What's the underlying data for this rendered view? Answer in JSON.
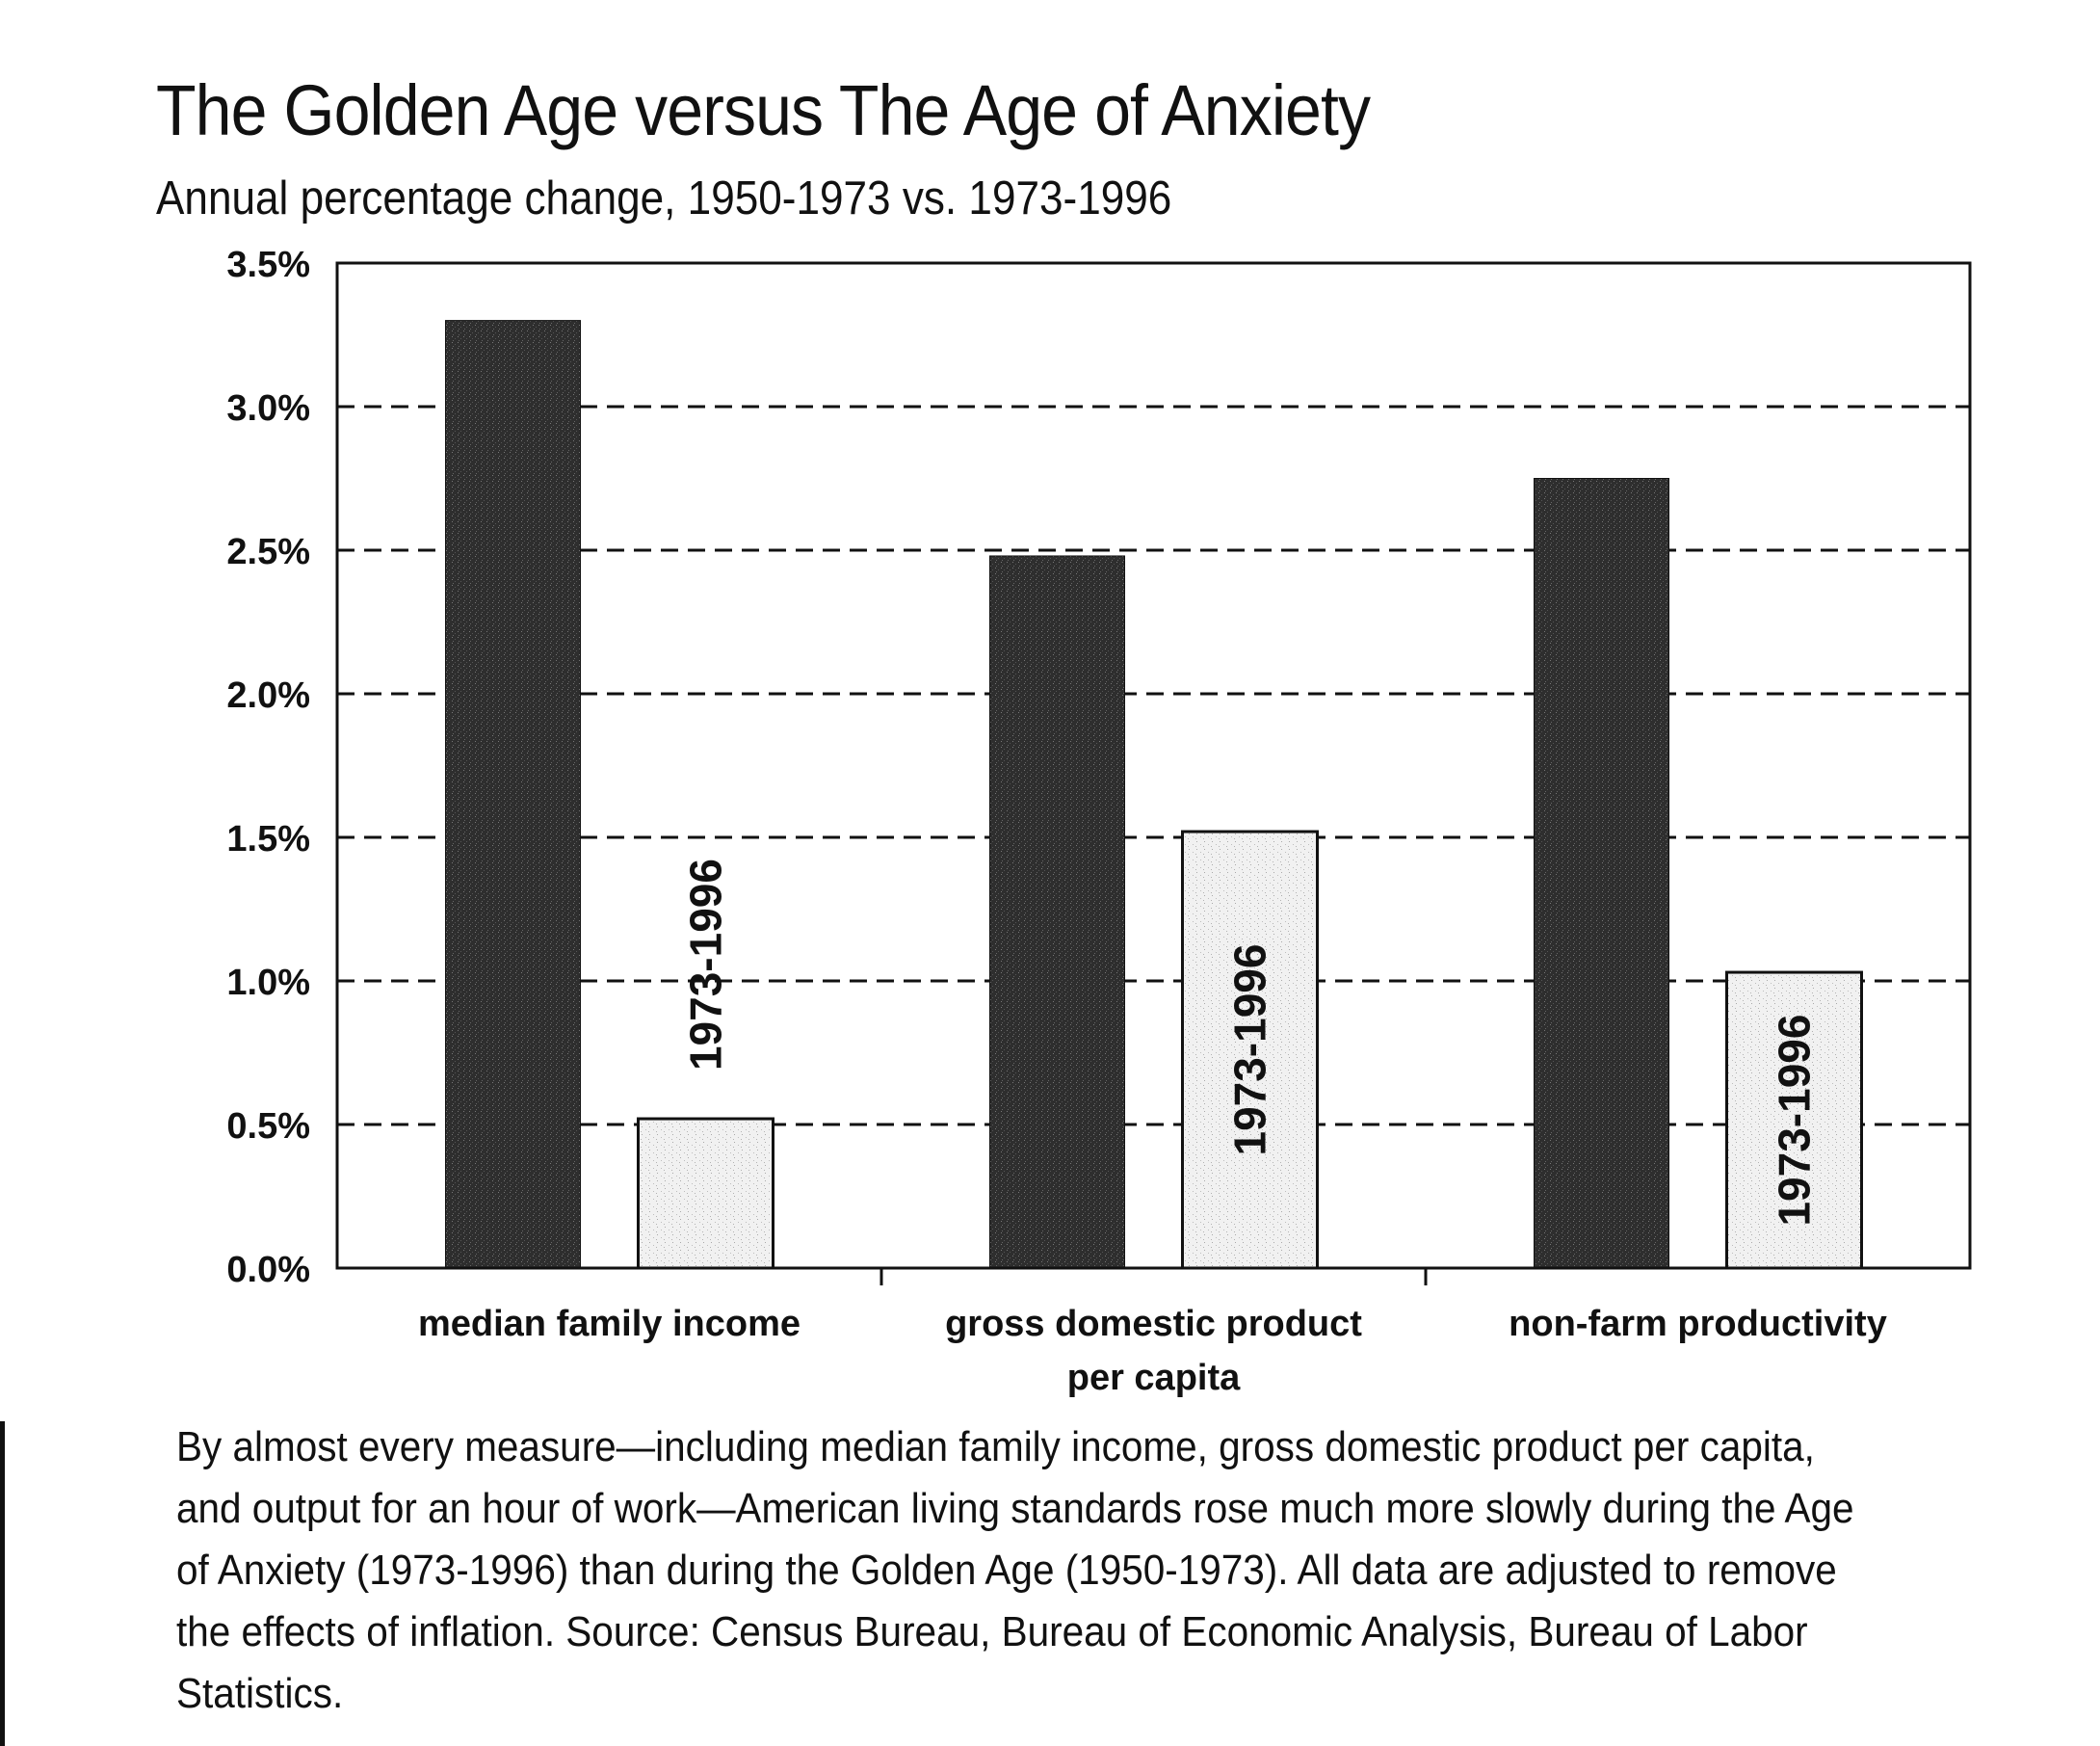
{
  "title": "The Golden Age versus The Age of Anxiety",
  "subtitle": "Annual percentage change, 1950-1973 vs. 1973-1996",
  "caption": "By almost every measure—including median family income, gross domestic product per capita, and output for an hour of work—American living standards rose much more slowly during the Age of Anxiety (1973-1996) than during the Golden Age (1950-1973). All data are adjusted to remove the effects of inflation. Source: Census Bureau, Bureau of Economic Analysis, Bureau of Labor Statistics.",
  "colors": {
    "golden_bar": "#2e2e2e",
    "anxiety_bar": "#f1f1f1",
    "axis": "#111111"
  },
  "chart_data": {
    "type": "bar",
    "title": "The Golden Age versus The Age of Anxiety",
    "subtitle": "Annual percentage change, 1950-1973 vs. 1973-1996",
    "xlabel": "",
    "ylabel": "",
    "ylim": [
      0,
      3.5
    ],
    "yticks": [
      0,
      0.5,
      1.0,
      1.5,
      2.0,
      2.5,
      3.0,
      3.5
    ],
    "ytick_labels": [
      "0.0%",
      "0.5%",
      "1.0%",
      "1.5%",
      "2.0%",
      "2.5%",
      "3.0%",
      "3.5%"
    ],
    "grid": true,
    "categories": [
      [
        "median family income"
      ],
      [
        "gross domestic product",
        "per capita"
      ],
      [
        "non-farm productivity"
      ]
    ],
    "series": [
      {
        "name": "1950-1973",
        "values": [
          3.3,
          2.48,
          2.75
        ],
        "label": ""
      },
      {
        "name": "1973-1996",
        "values": [
          0.52,
          1.52,
          1.03
        ],
        "label": "1973-1996"
      }
    ]
  }
}
